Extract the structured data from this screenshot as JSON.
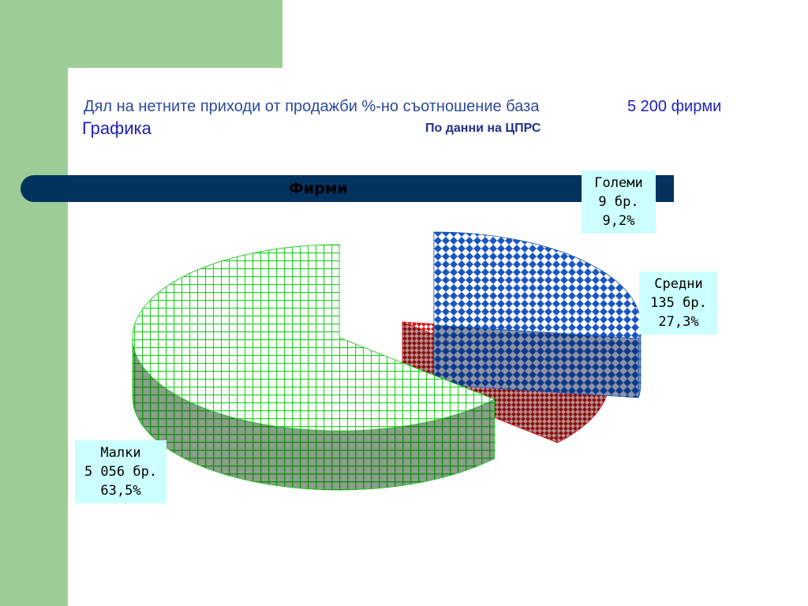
{
  "header": {
    "title_line1": "Дял на нетните приходи от продажби %-но съотношение база",
    "title_count": "5 200 фирми",
    "title_line2": "Графика",
    "source": "По данни на ЦПРС"
  },
  "chart_data": {
    "type": "pie",
    "title": "Фирми",
    "slices": [
      {
        "name": "Малки",
        "count_label": "5 056 бр.",
        "percent_label": "63,5%",
        "value": 63.5,
        "color": "#18c418"
      },
      {
        "name": "Средни",
        "count_label": "135 бр.",
        "percent_label": "27,3%",
        "value": 27.3,
        "color": "#1a56c0"
      },
      {
        "name": "Големи",
        "count_label": "9 бр.",
        "percent_label": "9,2%",
        "value": 9.2,
        "color": "#d41818"
      }
    ]
  }
}
